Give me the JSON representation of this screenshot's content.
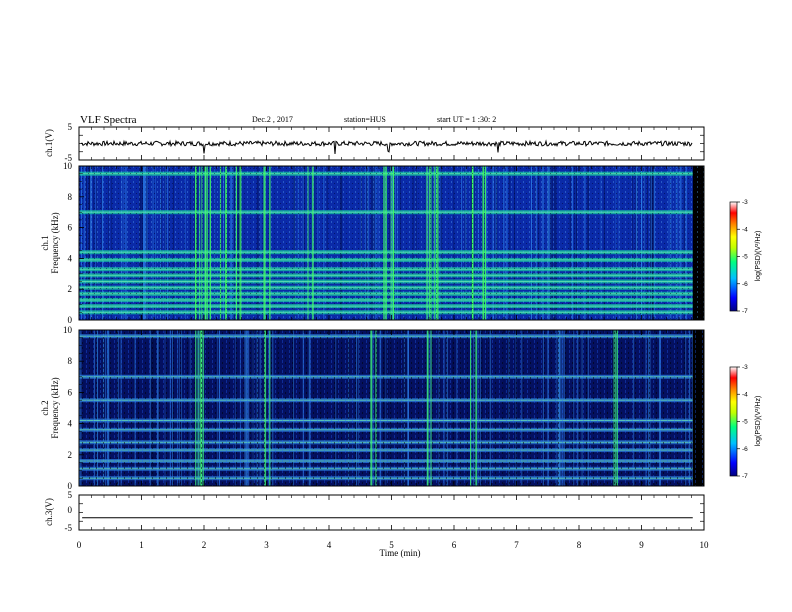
{
  "header": {
    "title": "VLF Spectra",
    "date": "Dec.2 , 2017",
    "station": "station=HUS",
    "start": "start UT = 1 :30: 2"
  },
  "chart_data": {
    "type": "heatmap",
    "x": {
      "label": "Time (min)",
      "range": [
        0,
        10
      ],
      "ticks": [
        "0",
        "1",
        "2",
        "3",
        "4",
        "5",
        "6",
        "7",
        "8",
        "9",
        "10"
      ]
    },
    "panels": [
      {
        "id": "ch1-waveform",
        "type": "line",
        "ylabel": "ch.1(V)",
        "ylim": [
          -5,
          5
        ],
        "yticks": [
          "5",
          "-5"
        ],
        "baseline": 0,
        "spikes_min": [
          2.0,
          4.1,
          4.95,
          6.7
        ]
      },
      {
        "id": "ch1-spectrogram",
        "type": "heatmap",
        "ylabel_line1": "ch.1",
        "ylabel_line2": "Frequency (kHz)",
        "ylim": [
          0,
          10
        ],
        "yticks": [
          "0",
          "2",
          "4",
          "6",
          "8",
          "10"
        ],
        "bands_khz": [
          0.5,
          0.9,
          1.3,
          1.7,
          2.1,
          2.5,
          2.9,
          3.3,
          3.9,
          4.4,
          7.0,
          9.5
        ],
        "bright_bursts_min": [
          1.9,
          2.0,
          2.05,
          2.3,
          2.55,
          3.0,
          3.7,
          4.9,
          5.0,
          5.6,
          5.7,
          6.3,
          6.5
        ]
      },
      {
        "id": "ch2-spectrogram",
        "type": "heatmap",
        "ylabel_line1": "ch.2",
        "ylabel_line2": "Frequency (kHz)",
        "ylim": [
          0,
          10
        ],
        "yticks": [
          "0",
          "2",
          "4",
          "6",
          "8",
          "10"
        ],
        "bands_khz": [
          0.5,
          1.1,
          1.6,
          2.3,
          2.8,
          3.6,
          4.2,
          5.5,
          7.0,
          9.6
        ],
        "bright_bursts_min": [
          1.9,
          2.0,
          3.0,
          4.7,
          5.6,
          6.3,
          8.6
        ]
      },
      {
        "id": "ch3-waveform",
        "type": "line",
        "ylabel": "ch.3(V)",
        "ylim": [
          -5,
          5
        ],
        "yticks": [
          "5",
          "0",
          "-5"
        ],
        "baseline": -1.5
      }
    ],
    "colorbar": {
      "label": "log(PSD)(V²/Hz)",
      "range": [
        -7,
        -3
      ],
      "ticks": [
        "-3",
        "-4",
        "-5",
        "-6",
        "-7"
      ],
      "colors": [
        "#000080",
        "#0000ff",
        "#00c0ff",
        "#00ff80",
        "#c0ff00",
        "#ffff00",
        "#ff8000",
        "#ff0000",
        "#ffffff"
      ]
    }
  }
}
